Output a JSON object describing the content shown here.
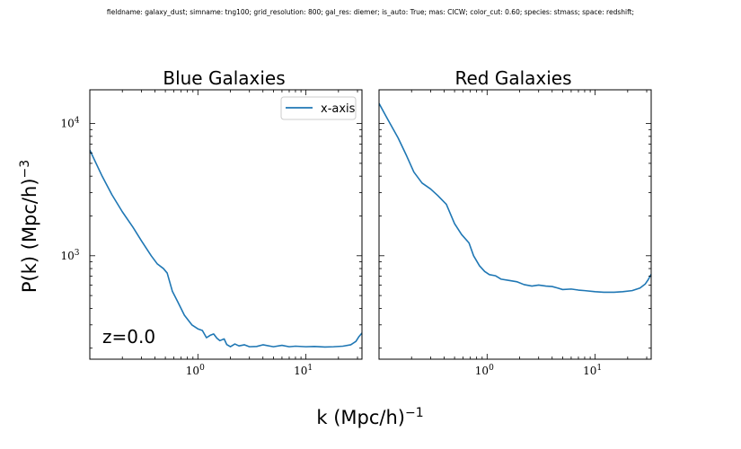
{
  "caption": "fieldname: galaxy_dust; simname: tng100; grid_resolution: 800; gal_res: diemer; is_auto: True; mas: CICW; color_cut: 0.60; species: stmass; space: redshift;",
  "figure": {
    "xlabel": "k (Mpc/h)",
    "xlabel_sup": "−1",
    "ylabel": "P(k) (Mpc/h)",
    "ylabel_sup": "−3",
    "line_color": "#1f77b4"
  },
  "chart_data": [
    {
      "type": "line",
      "title": "Blue Galaxies",
      "xscale": "log",
      "yscale": "log",
      "xlim": [
        0.1,
        33
      ],
      "ylim": [
        165,
        18000
      ],
      "x_ticks": [
        {
          "value": 1,
          "label": "10",
          "exp": "0"
        },
        {
          "value": 10,
          "label": "10",
          "exp": "1"
        }
      ],
      "y_ticks": [
        {
          "value": 1000,
          "label": "10",
          "exp": "3"
        },
        {
          "value": 10000,
          "label": "10",
          "exp": "4"
        }
      ],
      "legend": {
        "position": "top-right",
        "entries": [
          "x-axis"
        ]
      },
      "annotation": "z=0.0",
      "series": [
        {
          "name": "x-axis",
          "color": "#1f77b4",
          "points": [
            [
              0.1,
              6300
            ],
            [
              0.13,
              4000
            ],
            [
              0.16,
              2900
            ],
            [
              0.2,
              2150
            ],
            [
              0.25,
              1650
            ],
            [
              0.3,
              1300
            ],
            [
              0.37,
              1000
            ],
            [
              0.42,
              870
            ],
            [
              0.48,
              800
            ],
            [
              0.52,
              740
            ],
            [
              0.58,
              540
            ],
            [
              0.65,
              450
            ],
            [
              0.75,
              355
            ],
            [
              0.88,
              300
            ],
            [
              1.0,
              280
            ],
            [
              1.1,
              272
            ],
            [
              1.2,
              240
            ],
            [
              1.3,
              250
            ],
            [
              1.4,
              256
            ],
            [
              1.5,
              238
            ],
            [
              1.6,
              228
            ],
            [
              1.75,
              235
            ],
            [
              1.85,
              213
            ],
            [
              2.0,
              205
            ],
            [
              2.2,
              215
            ],
            [
              2.4,
              208
            ],
            [
              2.7,
              212
            ],
            [
              3.0,
              205
            ],
            [
              3.5,
              206
            ],
            [
              4.0,
              212
            ],
            [
              5.0,
              205
            ],
            [
              6.0,
              210
            ],
            [
              7.0,
              205
            ],
            [
              8.0,
              207
            ],
            [
              10.0,
              205
            ],
            [
              12.0,
              206
            ],
            [
              15.0,
              204
            ],
            [
              18.0,
              205
            ],
            [
              22.0,
              207
            ],
            [
              26.0,
              212
            ],
            [
              29.0,
              225
            ],
            [
              31.0,
              245
            ],
            [
              33.0,
              260
            ]
          ]
        }
      ]
    },
    {
      "type": "line",
      "title": "Red Galaxies",
      "xscale": "log",
      "yscale": "log",
      "xlim": [
        0.1,
        33
      ],
      "ylim": [
        165,
        18000
      ],
      "x_ticks": [
        {
          "value": 1,
          "label": "10",
          "exp": "0"
        },
        {
          "value": 10,
          "label": "10",
          "exp": "1"
        }
      ],
      "y_ticks": [
        {
          "value": 1000,
          "label": "",
          "exp": ""
        },
        {
          "value": 10000,
          "label": "",
          "exp": ""
        }
      ],
      "series": [
        {
          "color": "#1f77b4",
          "points": [
            [
              0.1,
              14200
            ],
            [
              0.12,
              10800
            ],
            [
              0.15,
              7800
            ],
            [
              0.18,
              5700
            ],
            [
              0.21,
              4300
            ],
            [
              0.25,
              3550
            ],
            [
              0.3,
              3200
            ],
            [
              0.35,
              2850
            ],
            [
              0.42,
              2450
            ],
            [
              0.5,
              1750
            ],
            [
              0.58,
              1450
            ],
            [
              0.68,
              1250
            ],
            [
              0.75,
              1000
            ],
            [
              0.85,
              840
            ],
            [
              0.95,
              760
            ],
            [
              1.05,
              720
            ],
            [
              1.2,
              705
            ],
            [
              1.35,
              665
            ],
            [
              1.6,
              650
            ],
            [
              1.9,
              635
            ],
            [
              2.2,
              605
            ],
            [
              2.6,
              590
            ],
            [
              3.0,
              600
            ],
            [
              3.5,
              590
            ],
            [
              4.0,
              585
            ],
            [
              4.5,
              570
            ],
            [
              5.0,
              555
            ],
            [
              6.0,
              560
            ],
            [
              7.0,
              550
            ],
            [
              8.0,
              545
            ],
            [
              10.0,
              535
            ],
            [
              12.0,
              530
            ],
            [
              15.0,
              530
            ],
            [
              18.0,
              535
            ],
            [
              22.0,
              545
            ],
            [
              26.0,
              570
            ],
            [
              29.0,
              610
            ],
            [
              31.0,
              660
            ],
            [
              33.0,
              725
            ]
          ]
        }
      ]
    }
  ]
}
